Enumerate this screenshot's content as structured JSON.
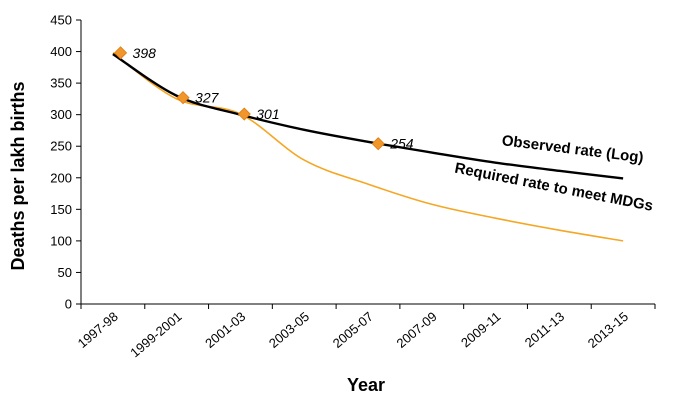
{
  "chart_data": {
    "type": "line",
    "title": "",
    "xlabel": "Year",
    "ylabel": "Deaths per lakh births",
    "ylim": [
      0,
      450
    ],
    "yticks": [
      0,
      50,
      100,
      150,
      200,
      250,
      300,
      350,
      400,
      450
    ],
    "categories": [
      "1997-98",
      "1999-2001",
      "2001-03",
      "2003-05",
      "2005-07",
      "2007-09",
      "2009-11",
      "2011-13",
      "2013-15"
    ],
    "grid": false,
    "legend": "none",
    "series": [
      {
        "name": "Observed rate (Log)",
        "color": "#000000",
        "x": [
          "1997-98",
          "1999-2001",
          "2001-03",
          "2003-05",
          "2005-07",
          "2007-09",
          "2009-11",
          "2011-13",
          "2013-15"
        ],
        "values": [
          396,
          330,
          300,
          276,
          257,
          240,
          224,
          211,
          199
        ]
      },
      {
        "name": "Required rate to meet MDGs",
        "color": "#f5a623",
        "x": [
          "1997-98",
          "1999-2001",
          "2001-03",
          "2003-05",
          "2005-07",
          "2007-09",
          "2009-11",
          "2011-13",
          "2013-15"
        ],
        "values": [
          398,
          325,
          301,
          228,
          190,
          158,
          136,
          117,
          100
        ]
      }
    ],
    "markers": {
      "color": "#f0962a",
      "points": [
        {
          "x": 0.12,
          "value": 398,
          "label": "398"
        },
        {
          "x": 1.1,
          "value": 327,
          "label": "327"
        },
        {
          "x": 2.06,
          "value": 301,
          "label": "301"
        },
        {
          "x": 4.16,
          "value": 254,
          "label": "254"
        }
      ]
    },
    "annotations": [
      {
        "text": "Observed rate (Log)",
        "x": 7.2,
        "y": 238,
        "rotate": 7
      },
      {
        "text": "Required rate to meet MDGs",
        "x": 6.9,
        "y": 178,
        "rotate": 11
      }
    ]
  }
}
